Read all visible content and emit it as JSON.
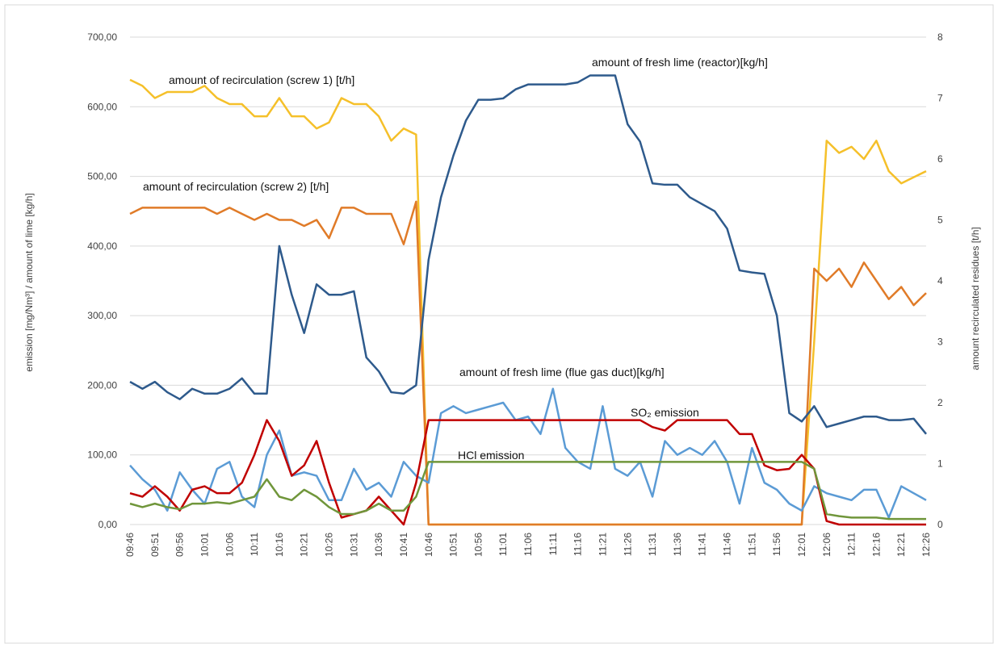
{
  "chart_data": {
    "type": "line",
    "y_label": "emission [mg/Nm³] /  amount of lime [kg/h]",
    "y2_label": "amount recirculated residues [t/h]",
    "categories": [
      "09:46",
      null,
      "09:51",
      null,
      "09:56",
      null,
      "10:01",
      null,
      "10:06",
      null,
      "10:11",
      null,
      "10:16",
      null,
      "10:21",
      null,
      "10:26",
      null,
      "10:31",
      null,
      "10:36",
      null,
      "10:41",
      null,
      "10:46",
      null,
      "10:51",
      null,
      "10:56",
      null,
      "11:01",
      null,
      "11:06",
      null,
      "11:11",
      null,
      "11:16",
      null,
      "11:21",
      null,
      "11:26",
      null,
      "11:31",
      null,
      "11:36",
      null,
      "11:41",
      null,
      "11:46",
      null,
      "11:51",
      null,
      "11:56",
      null,
      "12:01",
      null,
      "12:06",
      null,
      "12:11",
      null,
      "12:16",
      null,
      "12:21",
      null,
      "12:26"
    ],
    "ylim": [
      0,
      700
    ],
    "yticks": [
      {
        "value": 0,
        "label": "0,00"
      },
      {
        "value": 100,
        "label": "100,00"
      },
      {
        "value": 200,
        "label": "200,00"
      },
      {
        "value": 300,
        "label": "300,00"
      },
      {
        "value": 400,
        "label": "400,00"
      },
      {
        "value": 500,
        "label": "500,00"
      },
      {
        "value": 600,
        "label": "600,00"
      },
      {
        "value": 700,
        "label": "700,00"
      }
    ],
    "y2lim": [
      0,
      8
    ],
    "y2ticks": [
      0,
      1,
      2,
      3,
      4,
      5,
      6,
      7,
      8
    ],
    "grid": true,
    "series": [
      {
        "name": "amount of recirculation (screw 1) [t/h]",
        "color": "#f5c02a",
        "axis": "y2",
        "values": [
          7.3,
          7.2,
          7.0,
          7.1,
          7.1,
          7.1,
          7.2,
          7.0,
          6.9,
          6.9,
          6.7,
          6.7,
          7.0,
          6.7,
          6.7,
          6.5,
          6.6,
          7.0,
          6.9,
          6.9,
          6.7,
          6.3,
          6.5,
          6.4,
          0,
          0,
          0,
          0,
          0,
          0,
          0,
          0,
          0,
          0,
          0,
          0,
          0,
          0,
          0,
          0,
          0,
          0,
          0,
          0,
          0,
          0,
          0,
          0,
          0,
          0,
          0,
          0,
          0,
          0,
          0,
          3,
          6.3,
          6.1,
          6.2,
          6.0,
          6.3,
          5.8,
          5.6,
          5.7,
          5.8
        ]
      },
      {
        "name": "amount of recirculation (screw 2) [t/h]",
        "color": "#e07b28",
        "axis": "y2",
        "values": [
          5.1,
          5.2,
          5.2,
          5.2,
          5.2,
          5.2,
          5.2,
          5.1,
          5.2,
          5.1,
          5.0,
          5.1,
          5.0,
          5.0,
          4.9,
          5.0,
          4.7,
          5.2,
          5.2,
          5.1,
          5.1,
          5.1,
          4.6,
          5.3,
          0,
          0,
          0,
          0,
          0,
          0,
          0,
          0,
          0,
          0,
          0,
          0,
          0,
          0,
          0,
          0,
          0,
          0,
          0,
          0,
          0,
          0,
          0,
          0,
          0,
          0,
          0,
          0,
          0,
          0,
          0,
          4.2,
          4.0,
          4.2,
          3.9,
          4.3,
          4.0,
          3.7,
          3.9,
          3.6,
          3.8
        ]
      },
      {
        "name": "amount of fresh lime (reactor)[kg/h]",
        "color": "#2e5a8c",
        "values": [
          205,
          195,
          205,
          190,
          180,
          195,
          188,
          188,
          195,
          210,
          188,
          188,
          400,
          330,
          275,
          345,
          330,
          330,
          335,
          240,
          220,
          190,
          188,
          200,
          380,
          470,
          530,
          580,
          610,
          610,
          612,
          625,
          632,
          632,
          632,
          632,
          635,
          645,
          645,
          645,
          575,
          550,
          490,
          488,
          488,
          470,
          460,
          450,
          425,
          365,
          362,
          360,
          300,
          160,
          148,
          170,
          140,
          145,
          150,
          155,
          155,
          150,
          150,
          152,
          130
        ]
      },
      {
        "name": "amount of fresh lime (flue gas duct)[kg/h]",
        "color": "#5b9bd5",
        "values": [
          85,
          65,
          50,
          20,
          75,
          50,
          30,
          80,
          90,
          40,
          25,
          100,
          135,
          70,
          75,
          70,
          35,
          35,
          80,
          50,
          60,
          40,
          90,
          70,
          60,
          160,
          170,
          160,
          165,
          170,
          175,
          150,
          155,
          130,
          195,
          110,
          90,
          80,
          170,
          80,
          70,
          90,
          40,
          120,
          100,
          110,
          100,
          120,
          90,
          30,
          110,
          60,
          50,
          30,
          20,
          55,
          45,
          40,
          35,
          50,
          50,
          10,
          55,
          45,
          35
        ]
      },
      {
        "name": "SO₂ emission",
        "color": "#c00000",
        "values": [
          45,
          40,
          55,
          40,
          20,
          50,
          55,
          45,
          45,
          60,
          100,
          150,
          120,
          70,
          85,
          120,
          60,
          10,
          15,
          20,
          40,
          20,
          0,
          60,
          150,
          150,
          150,
          150,
          150,
          150,
          150,
          150,
          150,
          150,
          150,
          150,
          150,
          150,
          150,
          150,
          150,
          150,
          140,
          135,
          150,
          150,
          150,
          150,
          150,
          130,
          130,
          85,
          78,
          80,
          100,
          80,
          5,
          0,
          0,
          0,
          0,
          0,
          0,
          0,
          0
        ]
      },
      {
        "name": "HCl emission",
        "color": "#70963b",
        "values": [
          30,
          25,
          30,
          25,
          22,
          30,
          30,
          32,
          30,
          35,
          40,
          65,
          40,
          35,
          50,
          40,
          25,
          15,
          15,
          20,
          30,
          20,
          20,
          40,
          90,
          90,
          90,
          90,
          90,
          90,
          90,
          90,
          90,
          90,
          90,
          90,
          90,
          90,
          90,
          90,
          90,
          90,
          90,
          90,
          90,
          90,
          90,
          90,
          90,
          90,
          90,
          90,
          90,
          90,
          90,
          80,
          15,
          12,
          10,
          10,
          10,
          8,
          8,
          8,
          8
        ]
      }
    ]
  }
}
